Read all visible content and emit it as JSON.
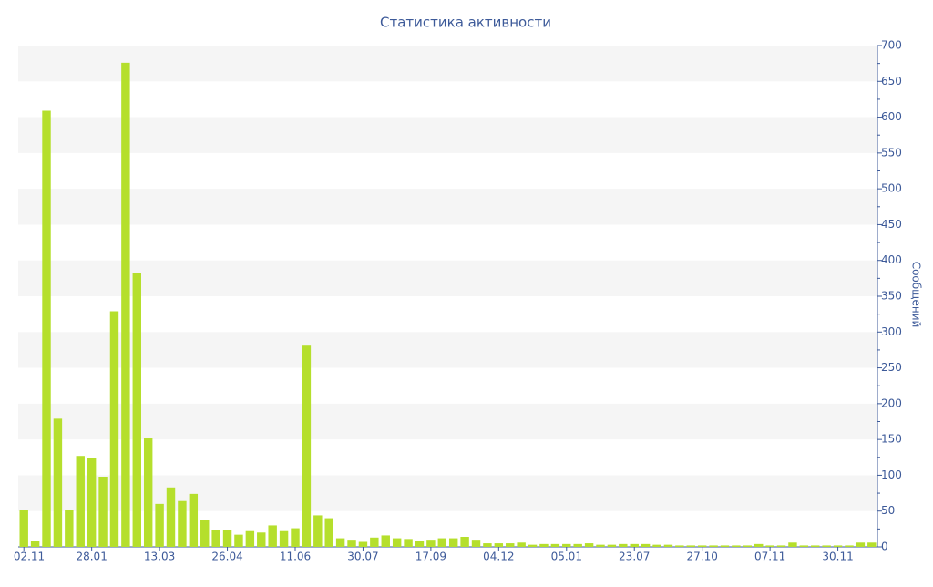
{
  "chart_data": {
    "type": "bar",
    "title": "Статистика активности",
    "y_label": "Сообщений",
    "categories": [
      "02.11",
      null,
      null,
      null,
      null,
      null,
      "28.01",
      null,
      null,
      null,
      null,
      null,
      "13.03",
      null,
      null,
      null,
      null,
      null,
      "26.04",
      null,
      null,
      null,
      null,
      null,
      "11.06",
      null,
      null,
      null,
      null,
      null,
      "30.07",
      null,
      null,
      null,
      null,
      null,
      "17.09",
      null,
      null,
      null,
      null,
      null,
      "04.12",
      null,
      null,
      null,
      null,
      null,
      "05.01",
      null,
      null,
      null,
      null,
      null,
      "23.07",
      null,
      null,
      null,
      null,
      null,
      "27.10",
      null,
      null,
      null,
      null,
      null,
      "07.11",
      null,
      null,
      null,
      null,
      null,
      "30.11",
      null,
      null,
      null
    ],
    "values": [
      51,
      8,
      609,
      179,
      51,
      127,
      124,
      98,
      329,
      676,
      382,
      152,
      60,
      83,
      64,
      74,
      37,
      24,
      23,
      17,
      22,
      20,
      30,
      22,
      26,
      281,
      44,
      40,
      12,
      10,
      7,
      13,
      16,
      12,
      11,
      8,
      10,
      12,
      12,
      14,
      10,
      5,
      5,
      5,
      6,
      3,
      4,
      4,
      4,
      4,
      5,
      3,
      3,
      4,
      4,
      4,
      3,
      3,
      2,
      2,
      2,
      2,
      2,
      2,
      2,
      4,
      2,
      2,
      6,
      2,
      2,
      2,
      2,
      2,
      6,
      6
    ],
    "color": "#b5df2c",
    "ylim": [
      0,
      700
    ],
    "yticks": [
      0,
      50,
      100,
      150,
      200,
      250,
      300,
      350,
      400,
      450,
      500,
      550,
      600,
      650,
      700
    ],
    "y_axis_side": "right",
    "grid": true
  }
}
